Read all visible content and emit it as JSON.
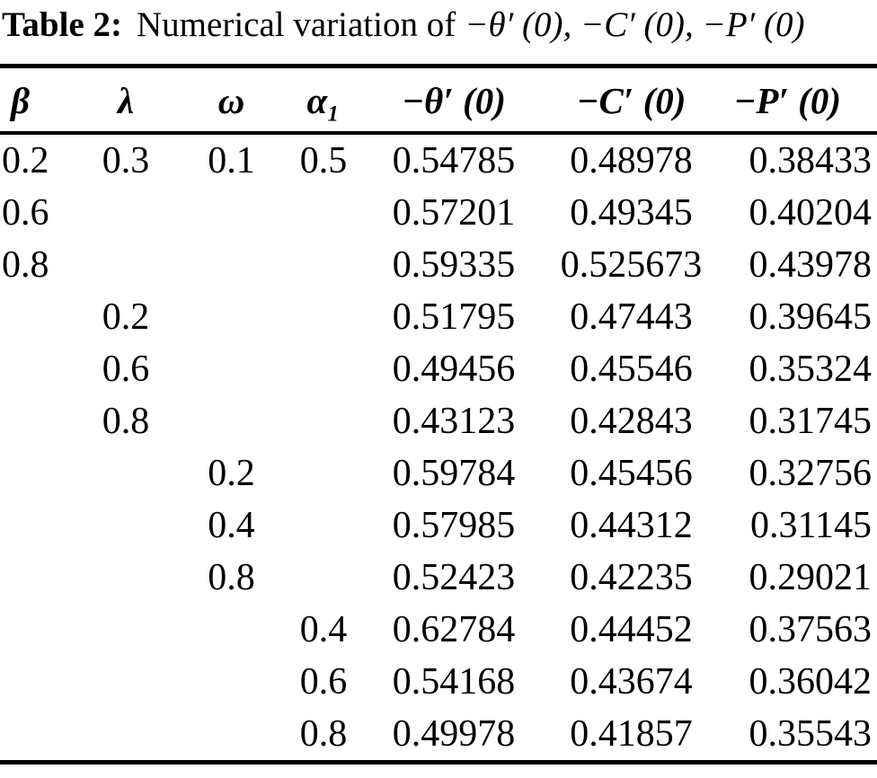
{
  "caption": {
    "label": "Table 2:",
    "text": "Numerical variation of",
    "math": "−θ′ (0), −C′ (0), −P′ (0)"
  },
  "colors": {
    "text": "#000000",
    "background": "#ffffff",
    "rule": "#000000"
  },
  "table": {
    "columns": [
      "β",
      "λ",
      "ω",
      "α₁",
      "−θ′ (0)",
      "−C′ (0)",
      "−P′ (0)"
    ],
    "rows": [
      [
        "0.2",
        "0.3",
        "0.1",
        "0.5",
        "0.54785",
        "0.48978",
        "0.38433"
      ],
      [
        "0.6",
        "",
        "",
        "",
        "0.57201",
        "0.49345",
        "0.40204"
      ],
      [
        "0.8",
        "",
        "",
        "",
        "0.59335",
        "0.525673",
        "0.43978"
      ],
      [
        "",
        "0.2",
        "",
        "",
        "0.51795",
        "0.47443",
        "0.39645"
      ],
      [
        "",
        "0.6",
        "",
        "",
        "0.49456",
        "0.45546",
        "0.35324"
      ],
      [
        "",
        "0.8",
        "",
        "",
        "0.43123",
        "0.42843",
        "0.31745"
      ],
      [
        "",
        "",
        "0.2",
        "",
        "0.59784",
        "0.45456",
        "0.32756"
      ],
      [
        "",
        "",
        "0.4",
        "",
        "0.57985",
        "0.44312",
        "0.31145"
      ],
      [
        "",
        "",
        "0.8",
        "",
        "0.52423",
        "0.42235",
        "0.29021"
      ],
      [
        "",
        "",
        "",
        "0.4",
        "0.62784",
        "0.44452",
        "0.37563"
      ],
      [
        "",
        "",
        "",
        "0.6",
        "0.54168",
        "0.43674",
        "0.36042"
      ],
      [
        "",
        "",
        "",
        "0.8",
        "0.49978",
        "0.41857",
        "0.35543"
      ]
    ]
  }
}
